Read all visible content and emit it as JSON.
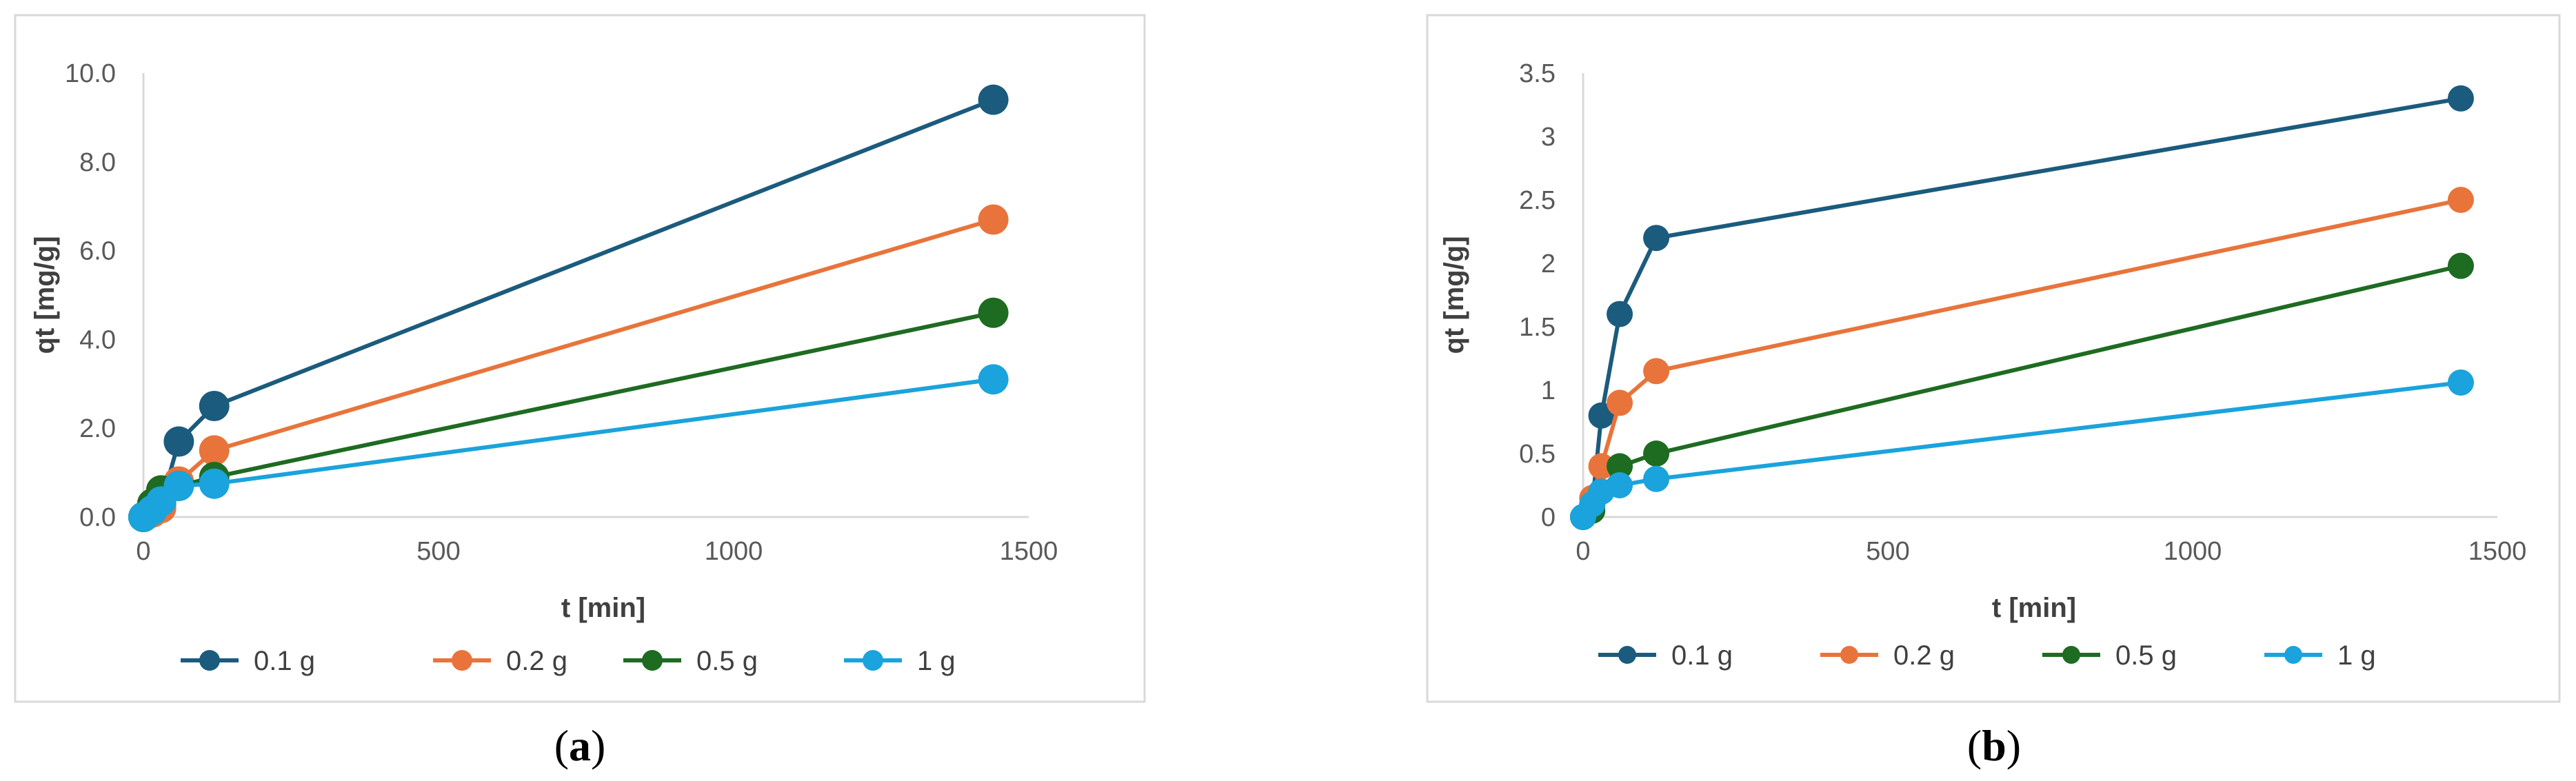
{
  "chart_data": [
    {
      "type": "line",
      "panel_label": "a",
      "xlabel": "t [min]",
      "ylabel": "qt [mg/g]",
      "xlim": [
        0,
        1500
      ],
      "ylim": [
        0,
        10
      ],
      "xticks": [
        "0",
        "500",
        "1000",
        "1500"
      ],
      "yticks": [
        "0.0",
        "2.0",
        "4.0",
        "6.0",
        "8.0",
        "10.0"
      ],
      "legend_position": "bottom",
      "series": [
        {
          "name": "0.1 g",
          "color": "#1b5b7d",
          "x": [
            0,
            15,
            30,
            60,
            120,
            1440
          ],
          "y": [
            0,
            0.1,
            0.3,
            1.7,
            2.5,
            9.4
          ]
        },
        {
          "name": "0.2 g",
          "color": "#e8743b",
          "x": [
            0,
            15,
            30,
            60,
            120,
            1440
          ],
          "y": [
            0,
            0.1,
            0.2,
            0.8,
            1.5,
            6.7
          ]
        },
        {
          "name": "0.5 g",
          "color": "#1e6b22",
          "x": [
            0,
            15,
            30,
            60,
            120,
            1440
          ],
          "y": [
            0,
            0.3,
            0.6,
            0.7,
            0.9,
            4.6
          ]
        },
        {
          "name": "1 g",
          "color": "#1aa3dc",
          "x": [
            0,
            15,
            30,
            60,
            120,
            1440
          ],
          "y": [
            0,
            0.15,
            0.35,
            0.7,
            0.75,
            3.1
          ]
        }
      ]
    },
    {
      "type": "line",
      "panel_label": "b",
      "xlabel": "t [min]",
      "ylabel": "qt [mg/g]",
      "xlim": [
        0,
        1500
      ],
      "ylim": [
        0,
        3.5
      ],
      "xticks": [
        "0",
        "500",
        "1000",
        "1500"
      ],
      "yticks": [
        "0",
        "0.5",
        "1",
        "1.5",
        "2",
        "2.5",
        "3",
        "3.5"
      ],
      "legend_position": "bottom",
      "series": [
        {
          "name": "0.1 g",
          "color": "#1b5b7d",
          "x": [
            0,
            15,
            30,
            60,
            120,
            1440
          ],
          "y": [
            0,
            0.1,
            0.8,
            1.6,
            2.2,
            3.3
          ]
        },
        {
          "name": "0.2 g",
          "color": "#e8743b",
          "x": [
            0,
            15,
            30,
            60,
            120,
            1440
          ],
          "y": [
            0,
            0.15,
            0.4,
            0.9,
            1.15,
            2.5
          ]
        },
        {
          "name": "0.5 g",
          "color": "#1e6b22",
          "x": [
            0,
            15,
            30,
            60,
            120,
            1440
          ],
          "y": [
            0,
            0.05,
            0.2,
            0.4,
            0.5,
            1.98
          ]
        },
        {
          "name": "1 g",
          "color": "#1aa3dc",
          "x": [
            0,
            15,
            30,
            60,
            120,
            1440
          ],
          "y": [
            0,
            0.1,
            0.2,
            0.25,
            0.3,
            1.06
          ]
        }
      ]
    }
  ],
  "captions": {
    "a": {
      "open": "(",
      "letter": "a",
      "close": ")"
    },
    "b": {
      "open": "(",
      "letter": "b",
      "close": ")"
    }
  }
}
